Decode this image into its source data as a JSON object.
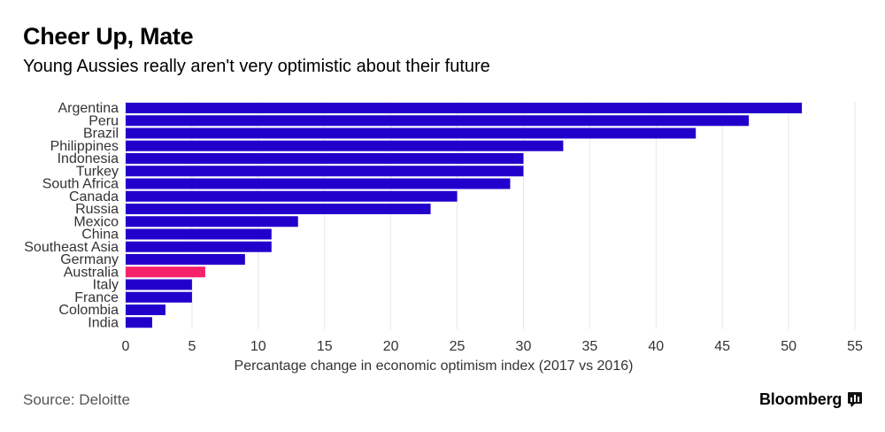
{
  "header": {
    "title": "Cheer Up, Mate",
    "subtitle": "Young Aussies really aren't very optimistic about their future"
  },
  "footer": {
    "source": "Source: Deloitte",
    "brand": "Bloomberg",
    "brand_icon": "bloomberg-terminal-icon"
  },
  "colors": {
    "bar": "#2200cc",
    "highlight": "#f5216a",
    "grid": "#e6e6e6",
    "text": "#333333"
  },
  "chart_data": {
    "type": "bar",
    "orientation": "horizontal",
    "categories": [
      "Argentina",
      "Peru",
      "Brazil",
      "Philippines",
      "Indonesia",
      "Turkey",
      "South Africa",
      "Canada",
      "Russia",
      "Mexico",
      "China",
      "Southeast Asia",
      "Germany",
      "Australia",
      "Italy",
      "France",
      "Colombia",
      "India"
    ],
    "values": [
      51,
      47,
      43,
      33,
      30,
      30,
      29,
      25,
      23,
      13,
      11,
      11,
      9,
      6,
      5,
      5,
      3,
      2
    ],
    "highlight": "Australia",
    "xlabel": "Percantage change in economic optimism index (2017 vs 2016)",
    "ylabel": "",
    "xlim": [
      0,
      55
    ],
    "xticks": [
      0,
      5,
      10,
      15,
      20,
      25,
      30,
      35,
      40,
      45,
      50,
      55
    ],
    "grid": true
  }
}
